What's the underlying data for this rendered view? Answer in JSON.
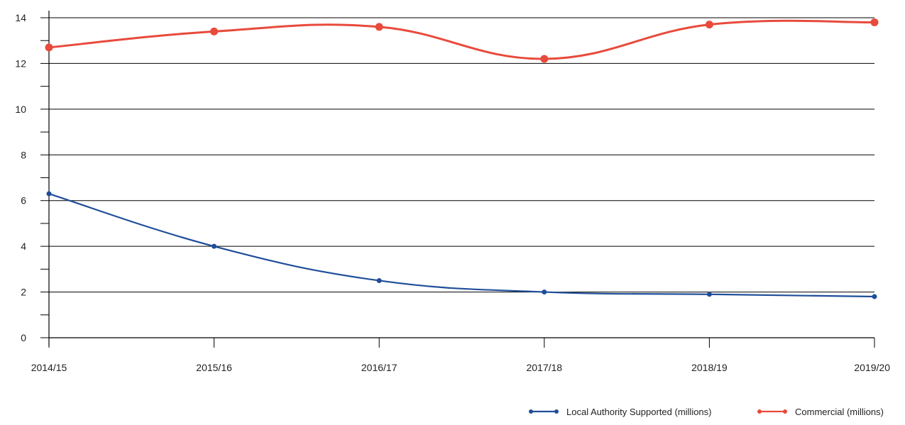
{
  "chart_data": {
    "type": "line",
    "title": "",
    "xlabel": "",
    "ylabel": "",
    "categories": [
      "2014/15",
      "2015/16",
      "2016/17",
      "2017/18",
      "2018/19",
      "2019/20"
    ],
    "ylim": [
      0,
      14
    ],
    "yticks": [
      0,
      2,
      4,
      6,
      8,
      10,
      12,
      14
    ],
    "grid": true,
    "legend_position": "bottom-right",
    "series": [
      {
        "name": "Local Authority Supported (millions)",
        "color": "#1f4e99",
        "values": [
          6.3,
          4.0,
          2.5,
          2.0,
          1.9,
          1.8
        ]
      },
      {
        "name": "Commercial (millions)",
        "color": "#e84a3c",
        "values": [
          12.7,
          13.4,
          13.6,
          12.2,
          13.7,
          13.8
        ]
      }
    ]
  }
}
